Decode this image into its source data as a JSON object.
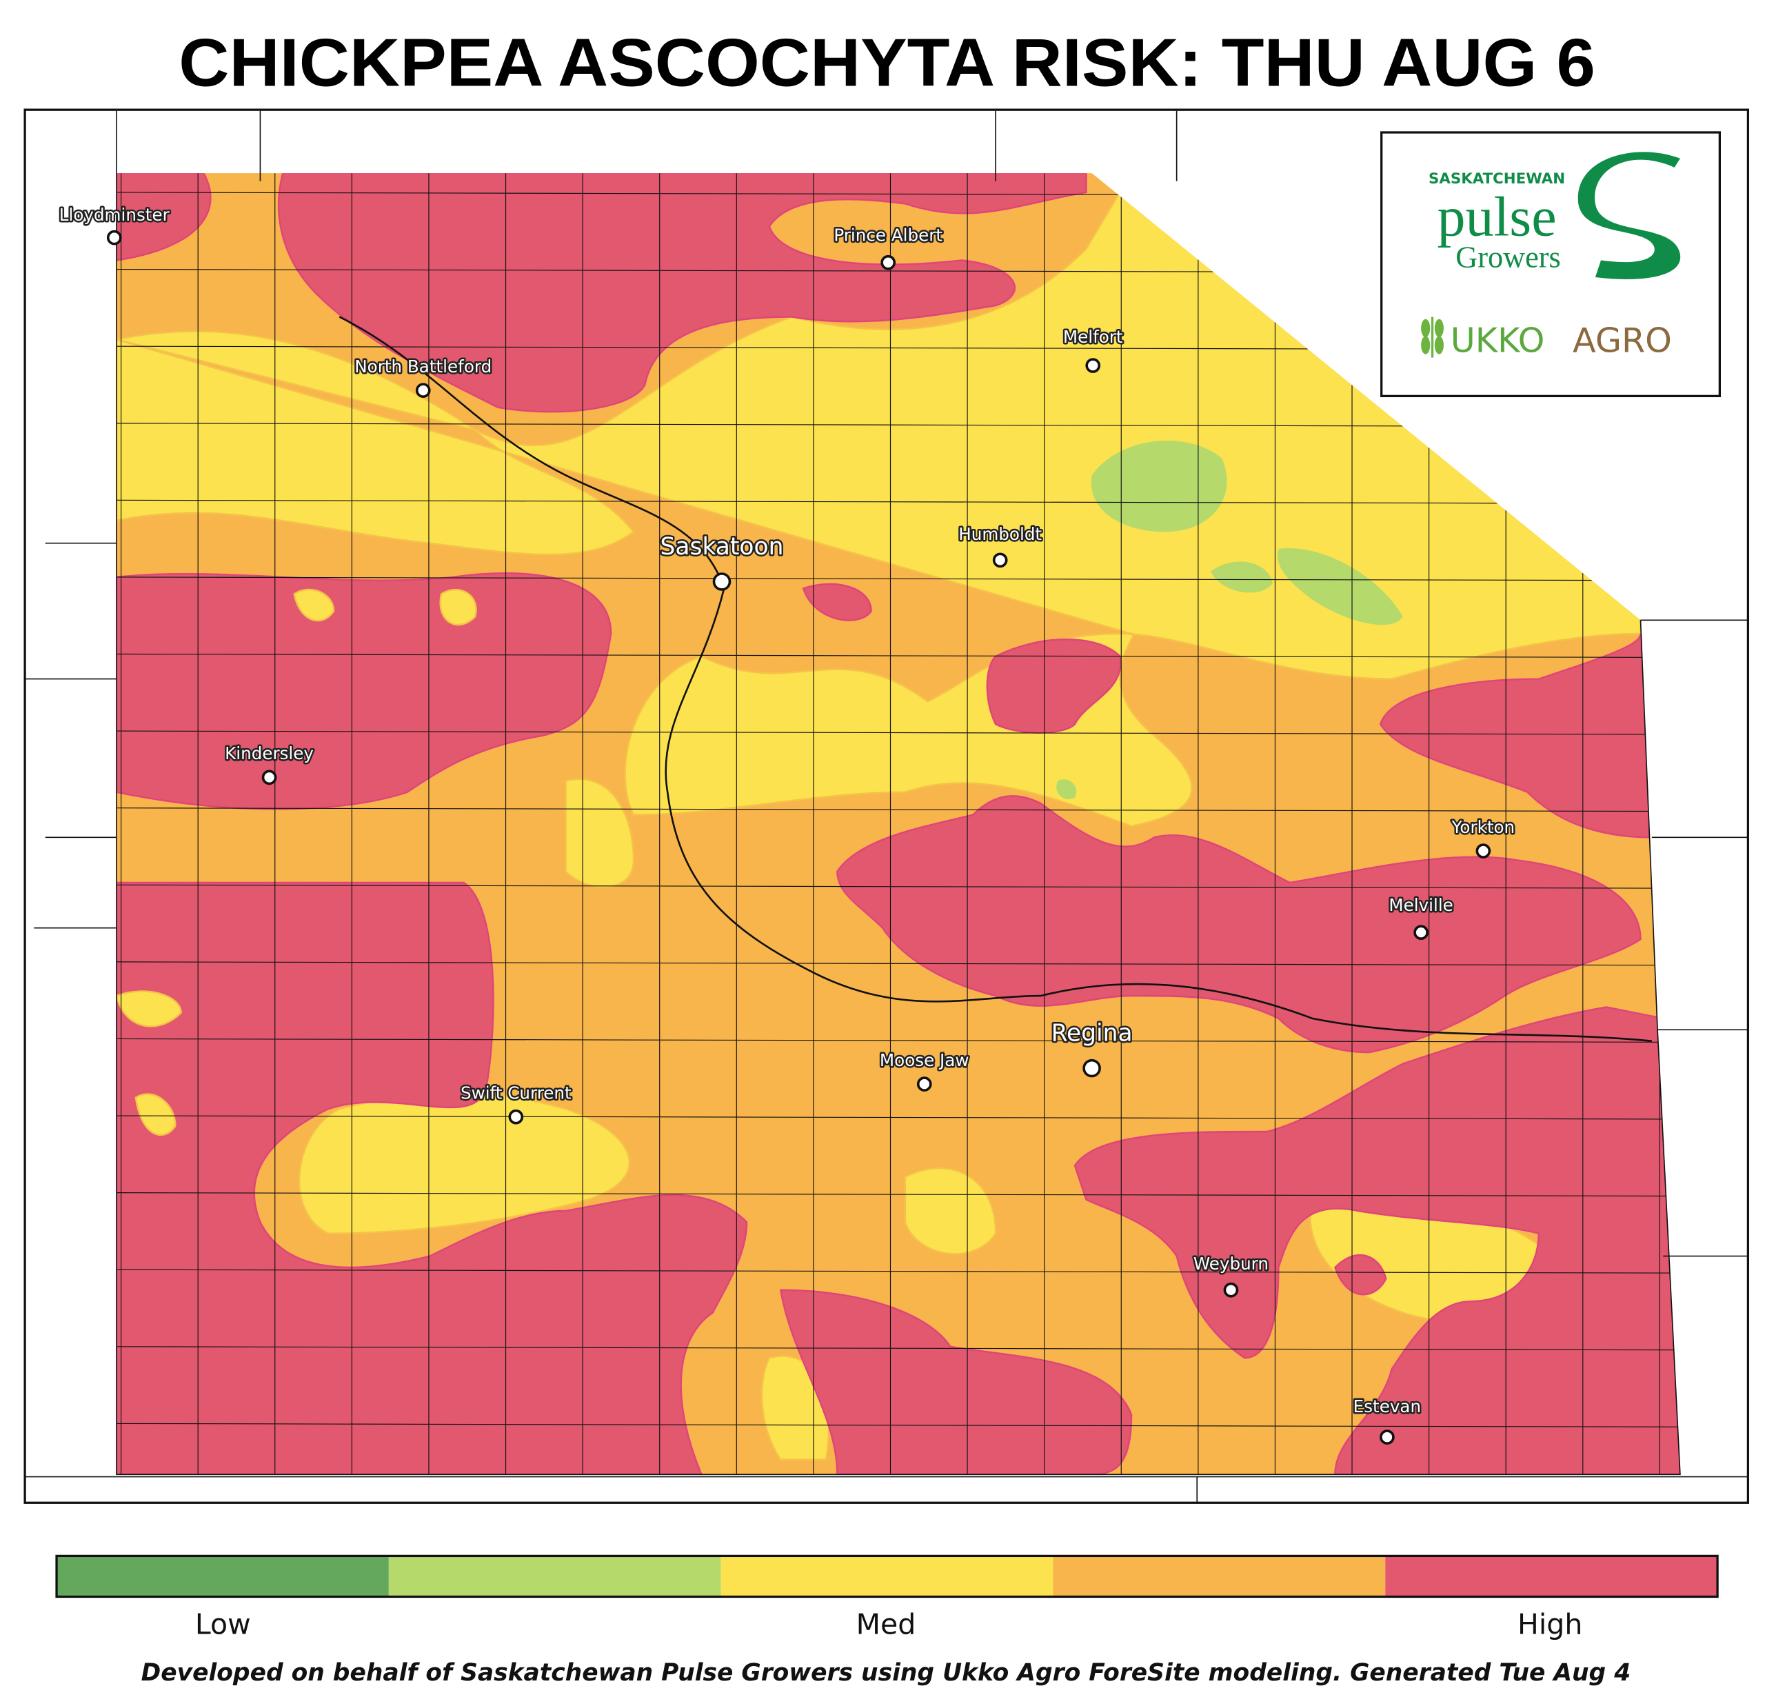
{
  "title": "CHICKPEA ASCOCHYTA RISK: THU AUG 6",
  "logo": {
    "org_top": "SASKATCHEWAN",
    "org_main": "pulse",
    "org_sub": "Growers",
    "partner_a": "UKKO",
    "partner_b": "AGRO"
  },
  "cities": [
    "Lloydminster",
    "Prince Albert",
    "North Battleford",
    "Melfort",
    "Saskatoon",
    "Humboldt",
    "Kindersley",
    "Yorkton",
    "Melville",
    "Regina",
    "Moose Jaw",
    "Swift Current",
    "Weyburn",
    "Estevan"
  ],
  "legend": {
    "colors": [
      "#63a85c",
      "#b6d96c",
      "#fde24f",
      "#f8b54b",
      "#e2586f"
    ],
    "labels": [
      "Low",
      "Med",
      "High"
    ]
  },
  "footer": "Developed on behalf of Saskatchewan Pulse Growers using Ukko Agro ForeSite modeling. Generated Tue Aug 4"
}
